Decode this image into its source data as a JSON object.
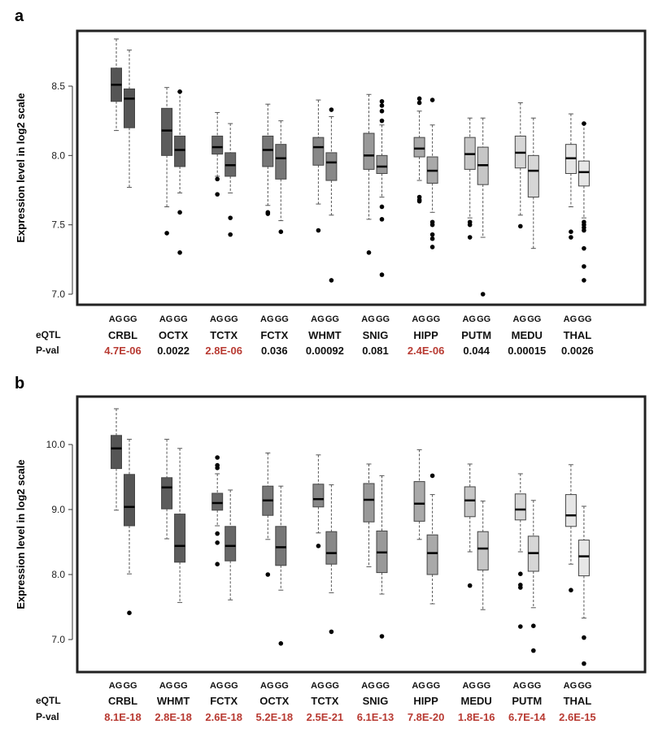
{
  "colors": {
    "significant": "#b83a32",
    "normal": "#111111"
  },
  "row_labels": {
    "genotypes": [
      "AG",
      "GG"
    ],
    "eqtl": "eQTL",
    "pval": "P-val"
  },
  "chart_data": [
    {
      "type": "box",
      "panel_label": "a",
      "ylabel": "Expression level in log2 scale",
      "ylim": [
        6.95,
        8.95
      ],
      "yticks": [
        7.0,
        7.5,
        8.0,
        8.5
      ],
      "ytick_labels": [
        "7.0",
        "7.5",
        "8.0",
        "8.5"
      ],
      "grid": false,
      "regions": [
        {
          "name": "CRBL",
          "pval": "4.7E-06",
          "significant": true,
          "color": "#555555",
          "AG": {
            "box": [
              8.18,
              8.39,
              8.51,
              8.63,
              8.84
            ],
            "outliers": []
          },
          "GG": {
            "box": [
              7.77,
              8.2,
              8.41,
              8.48,
              8.76
            ],
            "outliers": []
          }
        },
        {
          "name": "OCTX",
          "pval": "0.0022",
          "significant": false,
          "color": "#5c5c5c",
          "AG": {
            "box": [
              7.63,
              8.0,
              8.18,
              8.34,
              8.49
            ],
            "outliers": [
              7.44
            ]
          },
          "GG": {
            "box": [
              7.73,
              7.92,
              8.04,
              8.14,
              8.46
            ],
            "outliers": [
              8.46,
              7.59,
              7.3
            ]
          }
        },
        {
          "name": "TCTX",
          "pval": "2.8E-06",
          "significant": true,
          "color": "#676767",
          "AG": {
            "box": [
              7.85,
              8.01,
              8.06,
              8.14,
              8.31
            ],
            "outliers": [
              7.83,
              7.72
            ]
          },
          "GG": {
            "box": [
              7.73,
              7.85,
              7.93,
              8.02,
              8.23
            ],
            "outliers": [
              7.55,
              7.43
            ]
          }
        },
        {
          "name": "FCTX",
          "pval": "0.036",
          "significant": false,
          "color": "#777777",
          "AG": {
            "box": [
              7.64,
              7.92,
              8.04,
              8.14,
              8.37
            ],
            "outliers": [
              7.59,
              7.58
            ]
          },
          "GG": {
            "box": [
              7.53,
              7.83,
              7.98,
              8.08,
              8.25
            ],
            "outliers": [
              7.45
            ]
          }
        },
        {
          "name": "WHMT",
          "pval": "0.00092",
          "significant": false,
          "color": "#888888",
          "AG": {
            "box": [
              7.65,
              7.93,
              8.06,
              8.13,
              8.4
            ],
            "outliers": [
              7.46
            ]
          },
          "GG": {
            "box": [
              7.57,
              7.82,
              7.95,
              8.02,
              8.28
            ],
            "outliers": [
              8.33,
              7.1
            ]
          }
        },
        {
          "name": "SNIG",
          "pval": "0.081",
          "significant": false,
          "color": "#999999",
          "AG": {
            "box": [
              7.54,
              7.9,
              8.0,
              8.16,
              8.44
            ],
            "outliers": [
              7.3
            ]
          },
          "GG": {
            "box": [
              7.7,
              7.87,
              7.92,
              8.0,
              8.22
            ],
            "outliers": [
              8.39,
              8.36,
              8.32,
              8.25,
              7.63,
              7.54,
              7.14
            ]
          }
        },
        {
          "name": "HIPP",
          "pval": "2.4E-06",
          "significant": true,
          "color": "#a9a9a9",
          "AG": {
            "box": [
              7.82,
              7.99,
              8.05,
              8.13,
              8.32
            ],
            "outliers": [
              8.41,
              8.38,
              7.7,
              7.68,
              7.67
            ]
          },
          "GG": {
            "box": [
              7.59,
              7.8,
              7.89,
              7.99,
              8.22
            ],
            "outliers": [
              8.4,
              7.52,
              7.5,
              7.43,
              7.4,
              7.34
            ]
          }
        },
        {
          "name": "PUTM",
          "pval": "0.044",
          "significant": false,
          "color": "#c6c6c6",
          "AG": {
            "box": [
              7.55,
              7.9,
              8.01,
              8.13,
              8.27
            ],
            "outliers": [
              7.52,
              7.5,
              7.41
            ]
          },
          "GG": {
            "box": [
              7.41,
              7.79,
              7.93,
              8.06,
              8.27
            ],
            "outliers": [
              7.0
            ]
          }
        },
        {
          "name": "MEDU",
          "pval": "0.00015",
          "significant": false,
          "color": "#d6d6d6",
          "AG": {
            "box": [
              7.57,
              7.91,
              8.02,
              8.14,
              8.38
            ],
            "outliers": [
              7.49
            ]
          },
          "GG": {
            "box": [
              7.33,
              7.7,
              7.89,
              8.0,
              8.27
            ],
            "outliers": []
          }
        },
        {
          "name": "THAL",
          "pval": "0.0026",
          "significant": false,
          "color": "#e6e6e6",
          "AG": {
            "box": [
              7.63,
              7.87,
              7.98,
              8.08,
              8.3
            ],
            "outliers": [
              7.45,
              7.41
            ]
          },
          "GG": {
            "box": [
              7.55,
              7.78,
              7.88,
              7.96,
              8.23
            ],
            "outliers": [
              8.23,
              7.52,
              7.5,
              7.48,
              7.46,
              7.33,
              7.2,
              7.1
            ]
          }
        }
      ]
    },
    {
      "type": "box",
      "panel_label": "b",
      "ylabel": "Expression level in log2 scale",
      "ylim": [
        6.5,
        10.75
      ],
      "yticks": [
        7.0,
        8.0,
        9.0,
        10.0
      ],
      "ytick_labels": [
        "7.0",
        "8.0",
        "9.0",
        "10.0"
      ],
      "grid": false,
      "regions": [
        {
          "name": "CRBL",
          "pval": "8.1E-18",
          "significant": true,
          "color": "#555555",
          "AG": {
            "box": [
              8.99,
              9.63,
              9.94,
              10.14,
              10.55
            ],
            "outliers": []
          },
          "GG": {
            "box": [
              8.01,
              8.75,
              9.04,
              9.54,
              10.08
            ],
            "outliers": [
              7.41
            ]
          }
        },
        {
          "name": "WHMT",
          "pval": "2.8E-18",
          "significant": true,
          "color": "#5c5c5c",
          "AG": {
            "box": [
              8.55,
              9.01,
              9.34,
              9.49,
              10.08
            ],
            "outliers": []
          },
          "GG": {
            "box": [
              7.57,
              8.19,
              8.44,
              8.93,
              9.94
            ],
            "outliers": []
          }
        },
        {
          "name": "FCTX",
          "pval": "2.6E-18",
          "significant": true,
          "color": "#676767",
          "AG": {
            "box": [
              8.75,
              8.99,
              9.1,
              9.25,
              9.55
            ],
            "outliers": [
              9.8,
              9.68,
              9.64,
              8.63,
              8.49,
              8.16
            ]
          },
          "GG": {
            "box": [
              7.61,
              8.21,
              8.44,
              8.74,
              9.3
            ],
            "outliers": []
          }
        },
        {
          "name": "OCTX",
          "pval": "5.2E-18",
          "significant": true,
          "color": "#777777",
          "AG": {
            "box": [
              8.54,
              8.91,
              9.14,
              9.36,
              9.87
            ],
            "outliers": [
              8.0
            ]
          },
          "GG": {
            "box": [
              7.76,
              8.14,
              8.42,
              8.74,
              9.36
            ],
            "outliers": [
              6.94
            ]
          }
        },
        {
          "name": "TCTX",
          "pval": "2.5E-21",
          "significant": true,
          "color": "#888888",
          "AG": {
            "box": [
              8.64,
              9.04,
              9.16,
              9.39,
              9.84
            ],
            "outliers": [
              8.44
            ]
          },
          "GG": {
            "box": [
              7.72,
              8.16,
              8.33,
              8.66,
              9.38
            ],
            "outliers": [
              7.12
            ]
          }
        },
        {
          "name": "SNIG",
          "pval": "6.1E-13",
          "significant": true,
          "color": "#999999",
          "AG": {
            "box": [
              8.12,
              8.81,
              9.15,
              9.4,
              9.7
            ],
            "outliers": []
          },
          "GG": {
            "box": [
              7.7,
              8.03,
              8.34,
              8.67,
              9.52
            ],
            "outliers": [
              7.05
            ]
          }
        },
        {
          "name": "HIPP",
          "pval": "7.8E-20",
          "significant": true,
          "color": "#a9a9a9",
          "AG": {
            "box": [
              8.54,
              8.82,
              9.09,
              9.43,
              9.92
            ],
            "outliers": []
          },
          "GG": {
            "box": [
              7.55,
              8.0,
              8.33,
              8.61,
              9.23
            ],
            "outliers": [
              9.52
            ]
          }
        },
        {
          "name": "MEDU",
          "pval": "1.8E-16",
          "significant": true,
          "color": "#c6c6c6",
          "AG": {
            "box": [
              8.35,
              8.89,
              9.14,
              9.35,
              9.7
            ],
            "outliers": [
              7.83
            ]
          },
          "GG": {
            "box": [
              7.46,
              8.07,
              8.4,
              8.66,
              9.13
            ],
            "outliers": []
          }
        },
        {
          "name": "PUTM",
          "pval": "6.7E-14",
          "significant": true,
          "color": "#d6d6d6",
          "AG": {
            "box": [
              8.35,
              8.84,
              9.0,
              9.24,
              9.55
            ],
            "outliers": [
              8.01,
              7.84,
              7.8,
              7.2
            ]
          },
          "GG": {
            "box": [
              7.49,
              8.05,
              8.33,
              8.59,
              9.14
            ],
            "outliers": [
              7.21,
              6.83
            ]
          }
        },
        {
          "name": "THAL",
          "pval": "2.6E-15",
          "significant": true,
          "color": "#e6e6e6",
          "AG": {
            "box": [
              8.16,
              8.74,
              8.91,
              9.23,
              9.69
            ],
            "outliers": [
              7.76
            ]
          },
          "GG": {
            "box": [
              7.33,
              7.98,
              8.28,
              8.53,
              9.05
            ],
            "outliers": [
              7.03,
              6.63
            ]
          }
        }
      ]
    }
  ]
}
